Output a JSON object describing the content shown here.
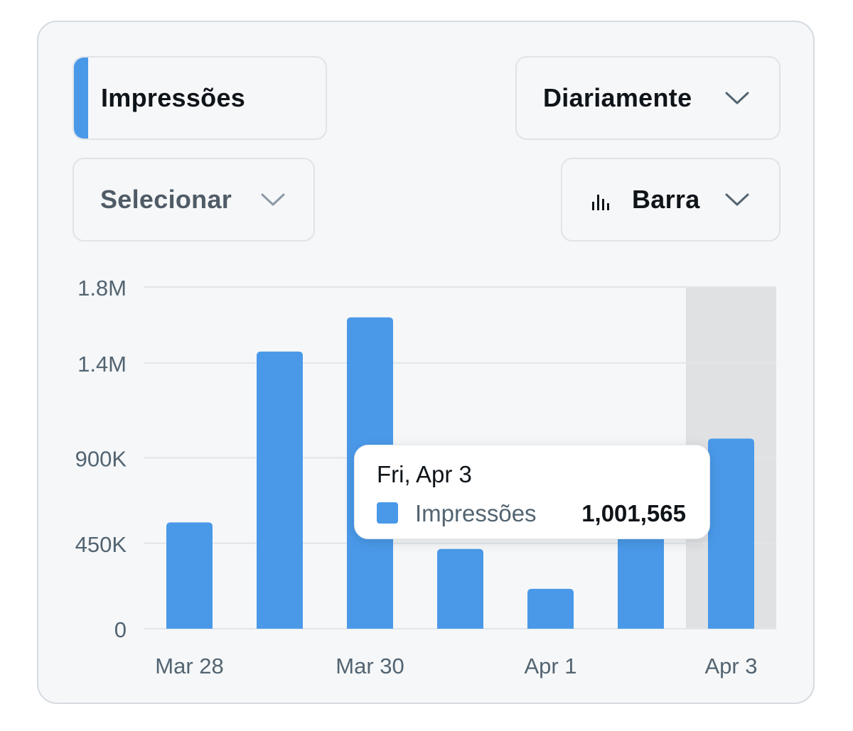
{
  "controls": {
    "metric": {
      "label": "Impressões",
      "accent_color": "#4a99e9"
    },
    "period": {
      "label": "Diariamente"
    },
    "compare": {
      "label": "Selecionar"
    },
    "chart_type": {
      "label": "Barra",
      "icon": "bar-chart-icon"
    }
  },
  "tooltip": {
    "date": "Fri, Apr 3",
    "series_name": "Impressões",
    "value": "1,001,565",
    "swatch_color": "#4a99e9"
  },
  "chart_data": {
    "type": "bar",
    "categories": [
      "Mar 28",
      "Mar 29",
      "Mar 30",
      "Mar 31",
      "Apr 1",
      "Apr 2",
      "Apr 3"
    ],
    "x_tick_labels": [
      "Mar 28",
      "Mar 30",
      "Apr 1",
      "Apr 3"
    ],
    "series": [
      {
        "name": "Impressões",
        "values": [
          560000,
          1460000,
          1640000,
          420000,
          210000,
          780000,
          1001565
        ],
        "color": "#4a99e9"
      }
    ],
    "y_ticks": [
      0,
      450000,
      900000,
      1400000,
      1800000
    ],
    "y_tick_labels": [
      "0",
      "450K",
      "900K",
      "1.4M",
      "1.8M"
    ],
    "ylim": [
      0,
      1800000
    ],
    "grid": true,
    "highlighted_category": "Apr 3",
    "highlight_color": "#e0e1e3"
  }
}
